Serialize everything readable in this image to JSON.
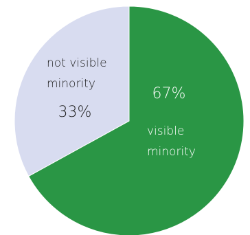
{
  "chart_data": {
    "type": "pie",
    "title": "",
    "start_angle_deg": 0,
    "direction": "clockwise",
    "slices": [
      {
        "label_lines": [
          "visible",
          "minority"
        ],
        "value": 67,
        "value_label": "67%",
        "color": "#2a9645",
        "label_color": "#ffffff"
      },
      {
        "label_lines": [
          "not visible",
          "minority"
        ],
        "value": 33,
        "value_label": "33%",
        "color": "#d8dcf0",
        "label_color": "#222222"
      }
    ]
  }
}
